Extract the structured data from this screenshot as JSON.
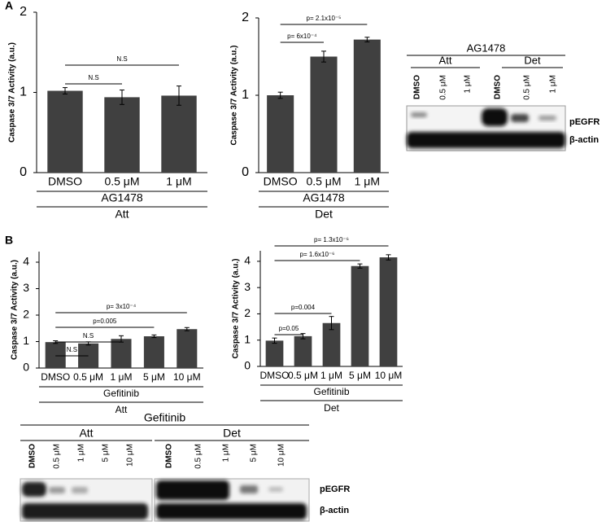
{
  "panels": [
    "A",
    "B"
  ],
  "chart_data": [
    {
      "type": "bar",
      "ylabel": "Caspase 3/7 Activity (a.u.)",
      "categories": [
        "DMSO",
        "0.5 μM",
        "1 μM"
      ],
      "values": [
        1.02,
        0.94,
        0.96
      ],
      "errors": [
        0.04,
        0.09,
        0.12
      ],
      "color": "#404040",
      "ylim": [
        0,
        2
      ],
      "yticks": [
        0,
        1,
        2
      ],
      "xlabel": "AG1478",
      "group": "Att",
      "annotations": [
        {
          "text": "N.S",
          "from": "DMSO",
          "to": "0.5 μM"
        },
        {
          "text": "N.S",
          "from": "DMSO",
          "to": "1 μM"
        }
      ]
    },
    {
      "type": "bar",
      "ylabel": "Caspase 3/7 Activity (a.u.)",
      "categories": [
        "DMSO",
        "0.5 μM",
        "1 μM"
      ],
      "values": [
        1.0,
        1.5,
        1.72
      ],
      "errors": [
        0.04,
        0.07,
        0.03
      ],
      "color": "#404040",
      "ylim": [
        0,
        2
      ],
      "yticks": [
        0,
        1,
        2
      ],
      "xlabel": "AG1478",
      "group": "Det",
      "annotations": [
        {
          "text": "p= 6x10⁻⁴",
          "from": "DMSO",
          "to": "0.5 μM"
        },
        {
          "text": "p= 2.1x10⁻⁵",
          "from": "DMSO",
          "to": "1 μM"
        }
      ]
    },
    {
      "type": "bar",
      "ylabel": "Caspase 3/7 Activity (a.u.)",
      "categories": [
        "DMSO",
        "0.5 μM",
        "1 μM",
        "5 μM",
        "10 μM"
      ],
      "values": [
        0.98,
        0.93,
        1.1,
        1.2,
        1.47
      ],
      "errors": [
        0.05,
        0.06,
        0.12,
        0.05,
        0.06
      ],
      "color": "#404040",
      "ylim": [
        0,
        4.4
      ],
      "yticks": [
        0,
        1,
        2,
        3,
        4
      ],
      "xlabel": "Gefitinib",
      "group": "Att",
      "annotations": [
        {
          "text": "N.S",
          "from": "DMSO",
          "to": "0.5 μM"
        },
        {
          "text": "N.S",
          "from": "DMSO",
          "to": "1 μM"
        },
        {
          "text": "p=0.005",
          "from": "DMSO",
          "to": "5 μM"
        },
        {
          "text": "p= 3x10⁻⁴",
          "from": "DMSO",
          "to": "10 μM"
        }
      ]
    },
    {
      "type": "bar",
      "ylabel": "Caspase 3/7 Activity (a.u.)",
      "categories": [
        "DMSO",
        "0.5 μM",
        "1 μM",
        "5 μM",
        "10 μM"
      ],
      "values": [
        0.98,
        1.15,
        1.65,
        3.82,
        4.15
      ],
      "errors": [
        0.1,
        0.1,
        0.25,
        0.08,
        0.1
      ],
      "color": "#404040",
      "ylim": [
        0,
        4.4
      ],
      "yticks": [
        0,
        1,
        2,
        3,
        4
      ],
      "xlabel": "Gefitinib",
      "group": "Det",
      "annotations": [
        {
          "text": "p=0.05",
          "from": "DMSO",
          "to": "0.5 μM"
        },
        {
          "text": "p=0.004",
          "from": "DMSO",
          "to": "1 μM"
        },
        {
          "text": "p= 1.6x10⁻⁶",
          "from": "DMSO",
          "to": "5 μM"
        },
        {
          "text": "p= 1.3x10⁻⁶",
          "from": "DMSO",
          "to": "10 μM"
        }
      ]
    }
  ],
  "blots": [
    {
      "title": "AG1478",
      "groups": [
        "Att",
        "Det"
      ],
      "lanes": [
        "DMSO",
        "0.5 μM",
        "1 μM",
        "DMSO",
        "0.5 μM",
        "1 μM"
      ],
      "bands": [
        "pEGFR",
        "β-actin"
      ]
    },
    {
      "title": "Gefitinib",
      "groups": [
        "Att",
        "Det"
      ],
      "lanes": [
        "DMSO",
        "0.5 μM",
        "1 μM",
        "5 μM",
        "10 μM",
        "DMSO",
        "0.5 μM",
        "1 μM",
        "5 μM",
        "10 μM"
      ],
      "bands": [
        "pEGFR",
        "β-actin"
      ]
    }
  ]
}
